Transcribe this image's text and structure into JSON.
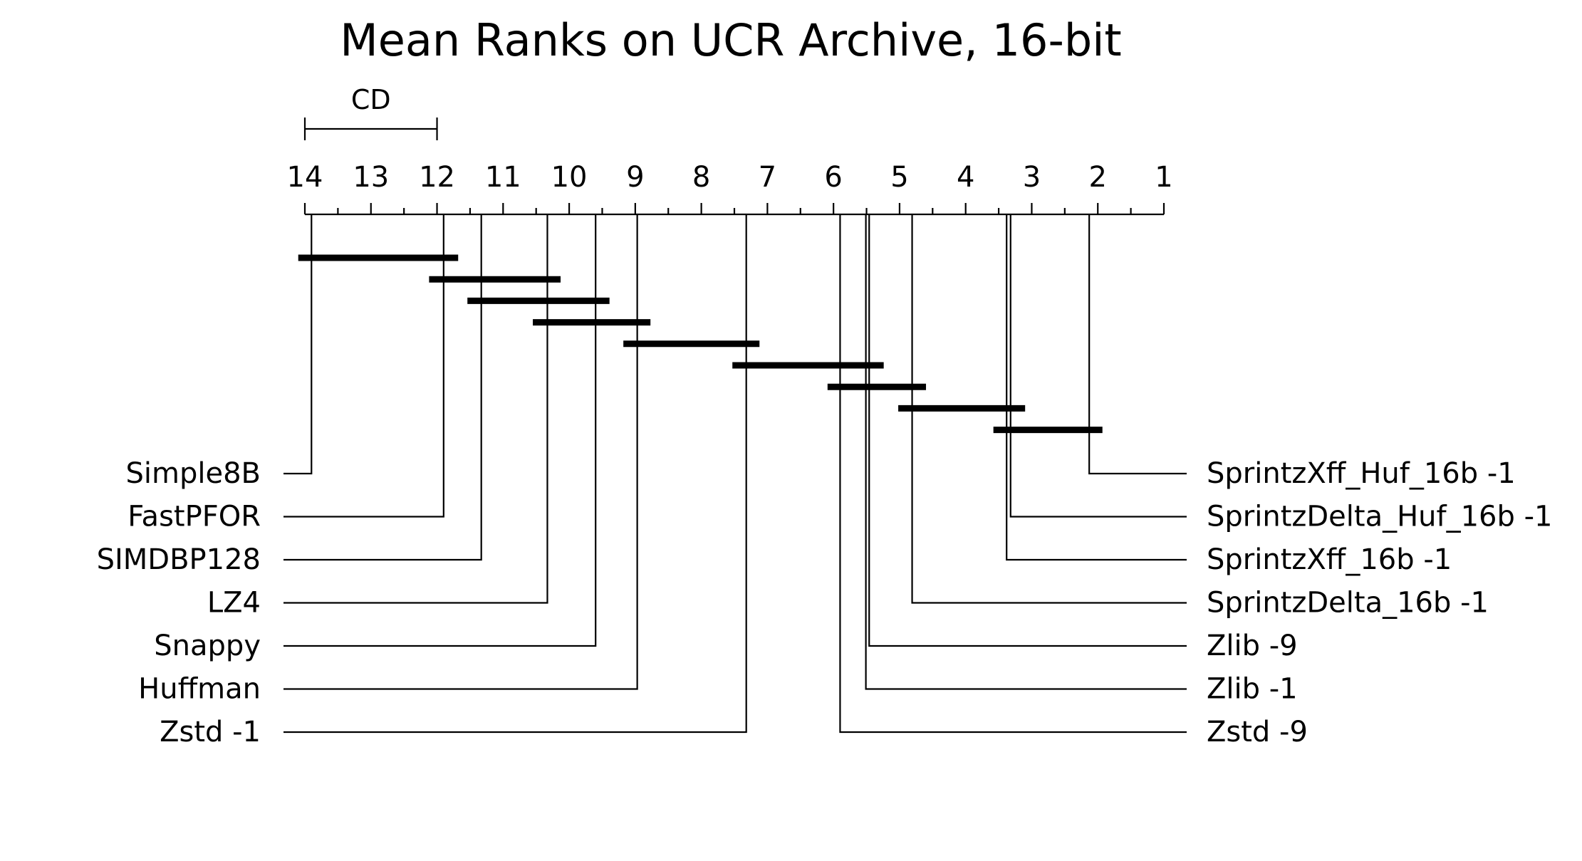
{
  "chart_data": {
    "type": "critical-difference-diagram",
    "title": "Mean Ranks on UCR Archive, 16-bit",
    "cd_label": "CD",
    "cd_value": 2.0,
    "axis": {
      "min": 1,
      "max": 14,
      "reversed": true,
      "tick_labels": [
        "14",
        "13",
        "12",
        "11",
        "10",
        "9",
        "8",
        "7",
        "6",
        "5",
        "4",
        "3",
        "2",
        "1"
      ]
    },
    "methods_left": [
      {
        "name": "Simple8B",
        "rank": 13.9
      },
      {
        "name": "FastPFOR",
        "rank": 11.9
      },
      {
        "name": "SIMDBP128",
        "rank": 11.33
      },
      {
        "name": "LZ4",
        "rank": 10.33
      },
      {
        "name": "Snappy",
        "rank": 9.6
      },
      {
        "name": "Huffman",
        "rank": 8.97
      },
      {
        "name": "Zstd -1",
        "rank": 7.32
      }
    ],
    "methods_right": [
      {
        "name": "SprintzXff_Huf_16b -1",
        "rank": 2.13
      },
      {
        "name": "SprintzDelta_Huf_16b -1",
        "rank": 3.32
      },
      {
        "name": "SprintzXff_16b -1",
        "rank": 3.38
      },
      {
        "name": "SprintzDelta_16b -1",
        "rank": 4.81
      },
      {
        "name": "Zlib -9",
        "rank": 5.46
      },
      {
        "name": "Zlib -1",
        "rank": 5.51
      },
      {
        "name": "Zstd -9",
        "rank": 5.9
      }
    ],
    "cliques": [
      [
        14.1,
        11.68
      ],
      [
        12.12,
        10.13
      ],
      [
        11.54,
        9.39
      ],
      [
        10.55,
        8.77
      ],
      [
        9.18,
        7.12
      ],
      [
        7.53,
        5.24
      ],
      [
        6.09,
        4.6
      ],
      [
        5.02,
        3.1
      ],
      [
        3.58,
        1.93
      ]
    ]
  }
}
